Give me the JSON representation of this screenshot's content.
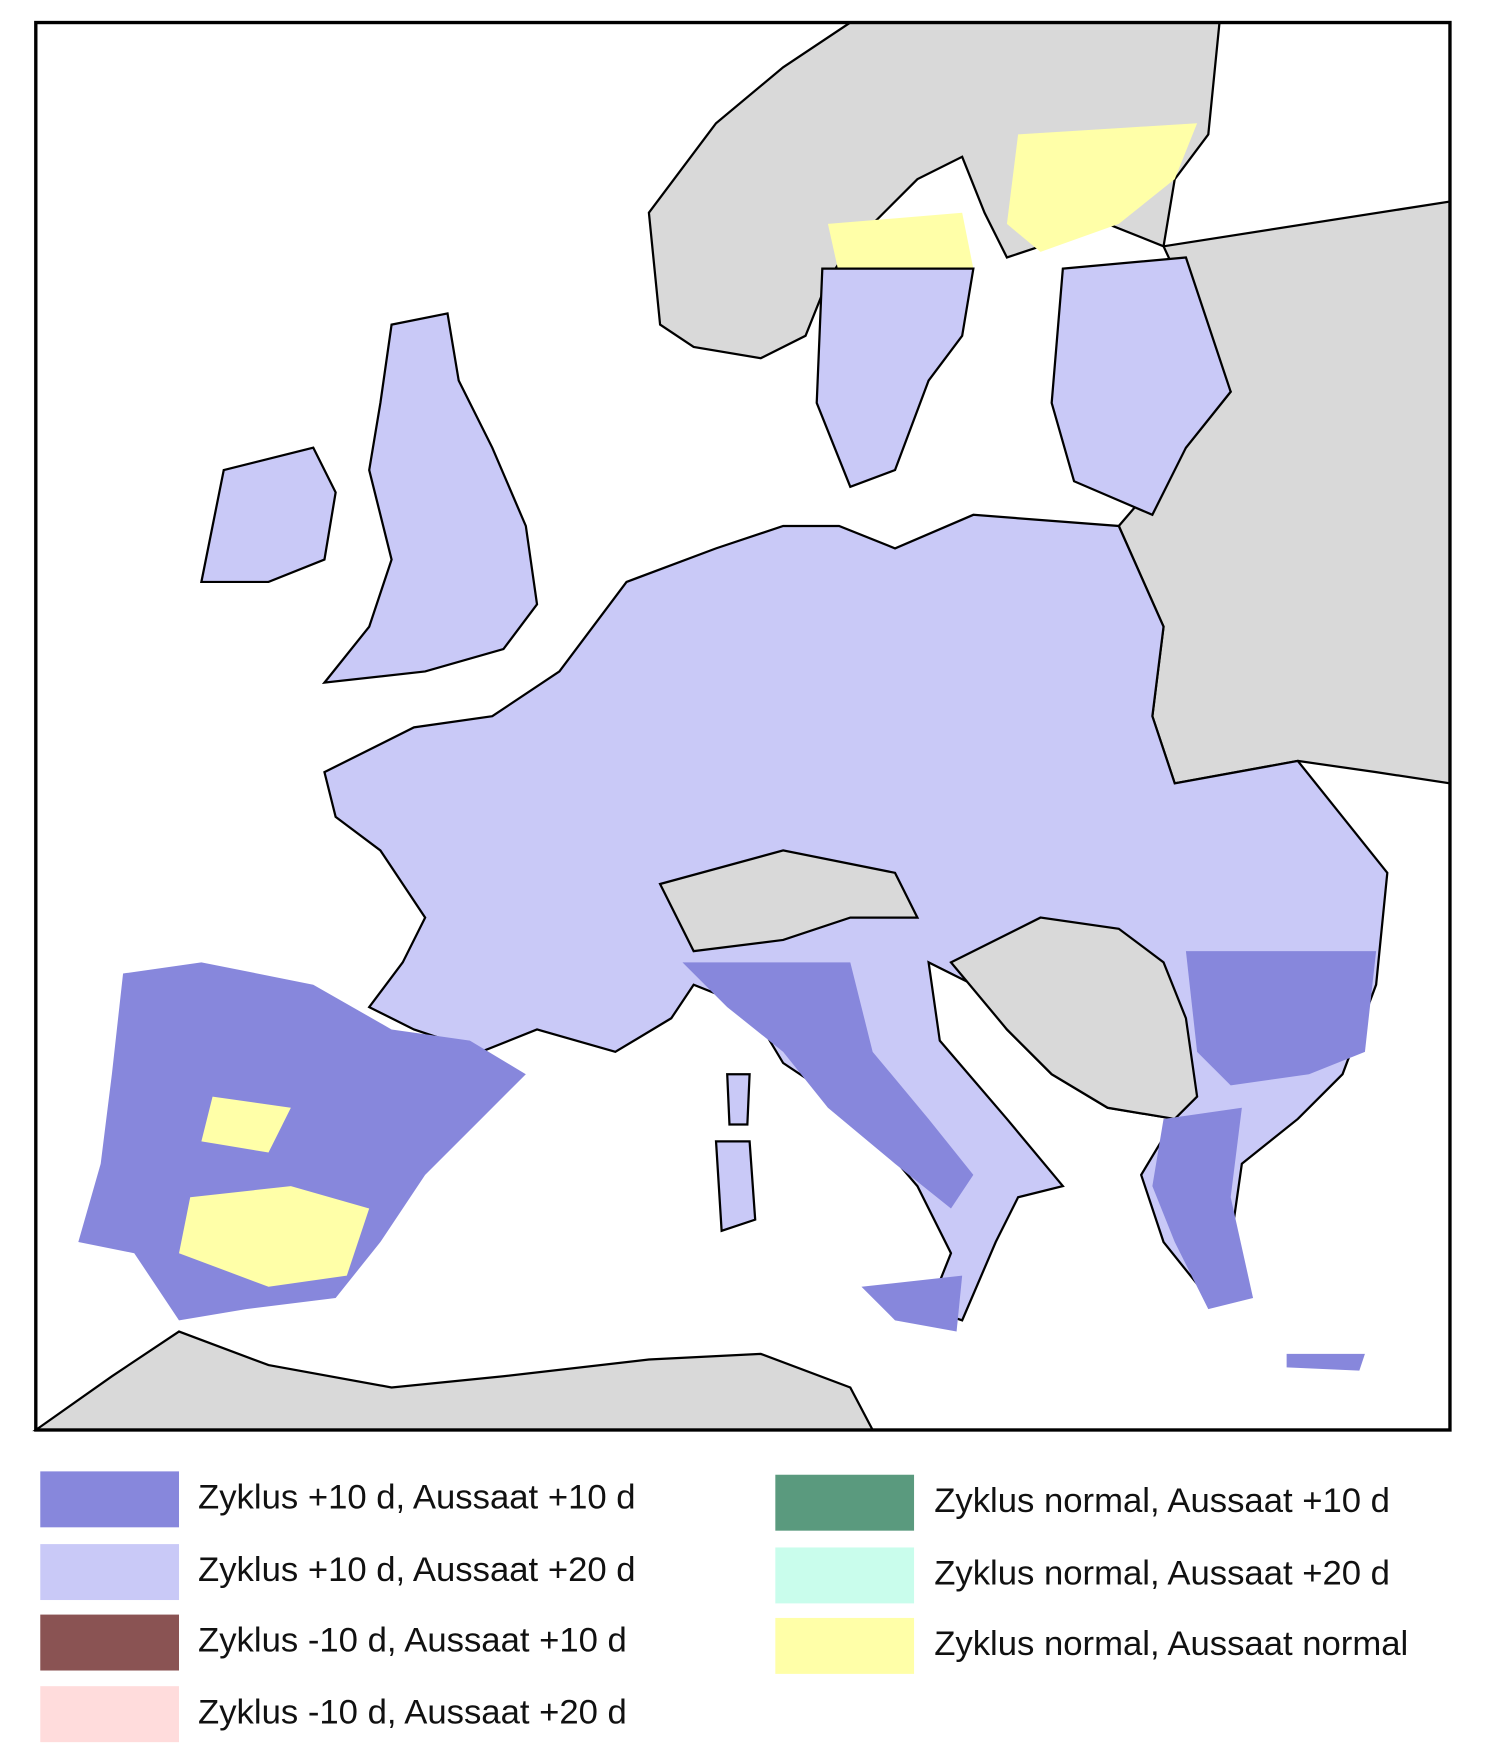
{
  "legend": [
    {
      "label": "Zyklus +10 d, Aussaat +10 d",
      "color": "#8787dc"
    },
    {
      "label": "Zyklus +10 d, Aussaat +20 d",
      "color": "#c9c9f7"
    },
    {
      "label": "Zyklus -10 d, Aussaat +10 d",
      "color": "#8a5353"
    },
    {
      "label": "Zyklus -10 d, Aussaat +20 d",
      "color": "#ffdcdc"
    },
    {
      "label": "Zyklus normal, Aussaat +10 d",
      "color": "#5a9a7e"
    },
    {
      "label": "Zyklus normal, Aussaat +20 d",
      "color": "#c9fdec"
    },
    {
      "label": "Zyklus normal, Aussaat normal",
      "color": "#ffffa8"
    }
  ]
}
